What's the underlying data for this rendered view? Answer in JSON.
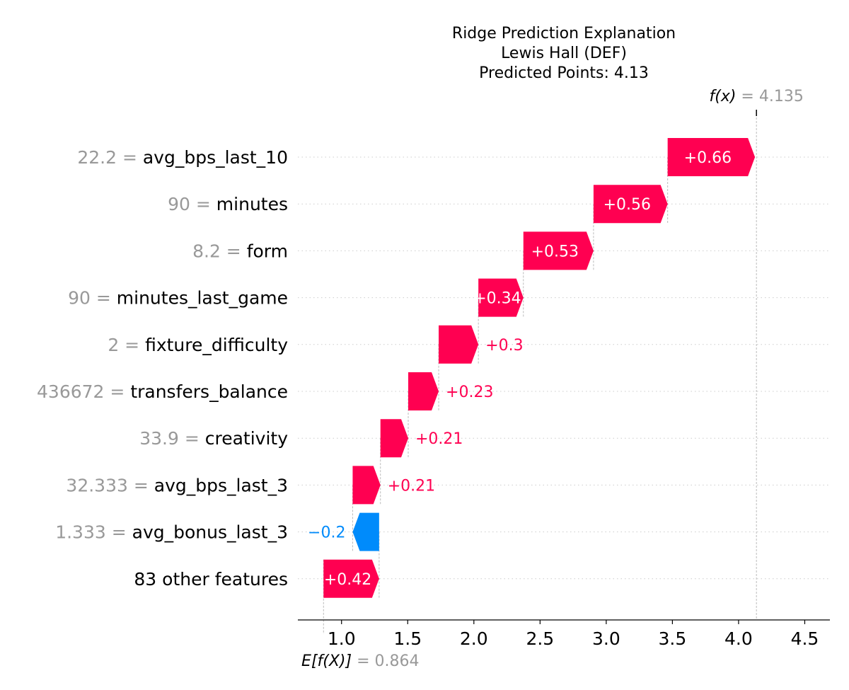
{
  "chart_data": {
    "type": "bar",
    "title_lines": [
      "Ridge Prediction Explanation",
      "Lewis Hall (DEF)",
      "Predicted Points: 4.13"
    ],
    "base_value": 0.864,
    "base_label": "E[f(X)]",
    "base_value_text": "= 0.864",
    "final_value": 4.135,
    "final_label": "f(x)",
    "final_value_text": "= 4.135",
    "xlim": [
      0.67,
      4.69
    ],
    "x_ticks": [
      1.0,
      1.5,
      2.0,
      2.5,
      3.0,
      3.5,
      4.0,
      4.5
    ],
    "x_tick_labels": [
      "1.0",
      "1.5",
      "2.0",
      "2.5",
      "3.0",
      "3.5",
      "4.0",
      "4.5"
    ],
    "positive_color": "#ff0051",
    "negative_color": "#008bfb",
    "features": [
      {
        "value": "22.2",
        "name": "avg_bps_last_10",
        "contribution": 0.66,
        "label": "+0.66"
      },
      {
        "value": "90",
        "name": "minutes",
        "contribution": 0.56,
        "label": "+0.56"
      },
      {
        "value": "8.2",
        "name": "form",
        "contribution": 0.53,
        "label": "+0.53"
      },
      {
        "value": "90",
        "name": "minutes_last_game",
        "contribution": 0.34,
        "label": "+0.34"
      },
      {
        "value": "2",
        "name": "fixture_difficulty",
        "contribution": 0.3,
        "label": "+0.3"
      },
      {
        "value": "436672",
        "name": "transfers_balance",
        "contribution": 0.23,
        "label": "+0.23"
      },
      {
        "value": "33.9",
        "name": "creativity",
        "contribution": 0.21,
        "label": "+0.21"
      },
      {
        "value": "32.333",
        "name": "avg_bps_last_3",
        "contribution": 0.21,
        "label": "+0.21"
      },
      {
        "value": "1.333",
        "name": "avg_bonus_last_3",
        "contribution": -0.2,
        "label": "−0.2"
      },
      {
        "value": "",
        "name": "83 other features",
        "contribution": 0.42,
        "label": "+0.42"
      }
    ]
  }
}
